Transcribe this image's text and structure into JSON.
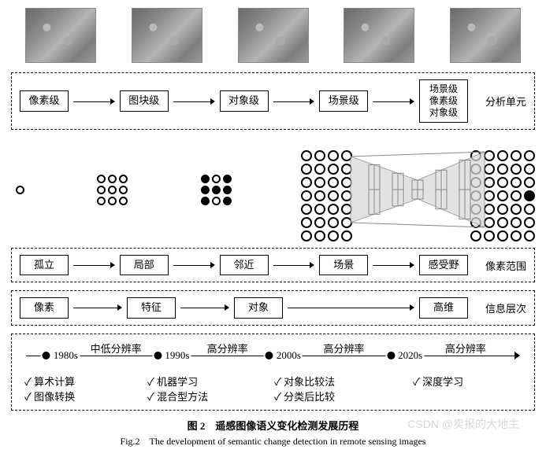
{
  "rows": {
    "analysis_units": {
      "items": [
        "像素级",
        "图块级",
        "对象级",
        "场景级",
        "场景级\n像素级\n对象级"
      ],
      "side_label": "分析单元"
    },
    "pixel_scope": {
      "items": [
        "孤立",
        "局部",
        "邻近",
        "场景",
        "感受野"
      ],
      "side_label": "像素范围"
    },
    "info_level": {
      "items": [
        "像素",
        "特征",
        "对象",
        "高维"
      ],
      "skip_after": 2,
      "side_label": "信息层次"
    }
  },
  "grids": {
    "border_color": "#000000",
    "fill_color": "#000000",
    "bg_color": "#ffffff",
    "g1": {
      "rows": 1,
      "cols": 1,
      "filled": []
    },
    "g2": {
      "rows": 3,
      "cols": 3,
      "filled": []
    },
    "g3": {
      "rows": 3,
      "cols": 3,
      "filled": [
        [
          0,
          0
        ],
        [
          0,
          2
        ],
        [
          1,
          0
        ],
        [
          1,
          1
        ],
        [
          1,
          2
        ],
        [
          2,
          0
        ],
        [
          2,
          2
        ]
      ]
    },
    "left_big": {
      "rows": 7,
      "cols": 4
    },
    "right_big": {
      "rows": 7,
      "cols": 5,
      "filled": [
        [
          3,
          4
        ]
      ]
    }
  },
  "volume": {
    "shade_fill": "#d9d9d9",
    "wire_stroke": "#8a8a8a",
    "opacity": 0.75
  },
  "timeline": {
    "points": [
      {
        "year": "1980s",
        "x_pct": 8
      },
      {
        "year": "1990s",
        "x_pct": 30
      },
      {
        "year": "2000s",
        "x_pct": 52
      },
      {
        "year": "2020s",
        "x_pct": 76
      }
    ],
    "segments": [
      {
        "label": "中低分辨率",
        "x_pct": 19
      },
      {
        "label": "高分辨率",
        "x_pct": 41
      },
      {
        "label": "高分辨率",
        "x_pct": 64
      },
      {
        "label": "高分辨率",
        "x_pct": 88
      }
    ],
    "methods": {
      "col1": [
        "算术计算",
        "图像转换"
      ],
      "col2": [
        "机器学习",
        "混合型方法"
      ],
      "col3": [
        "对象比较法",
        "分类后比较"
      ],
      "col4": [
        "深度学习"
      ]
    }
  },
  "caption": {
    "zh": "图 2　遥感图像语义变化检测发展历程",
    "en": "Fig.2　The development of semantic change detection in remote sensing images"
  },
  "watermark": "CSDN @卖报的大地主",
  "colors": {
    "text": "#000000",
    "background": "#ffffff",
    "thumb_border": "#888888"
  }
}
